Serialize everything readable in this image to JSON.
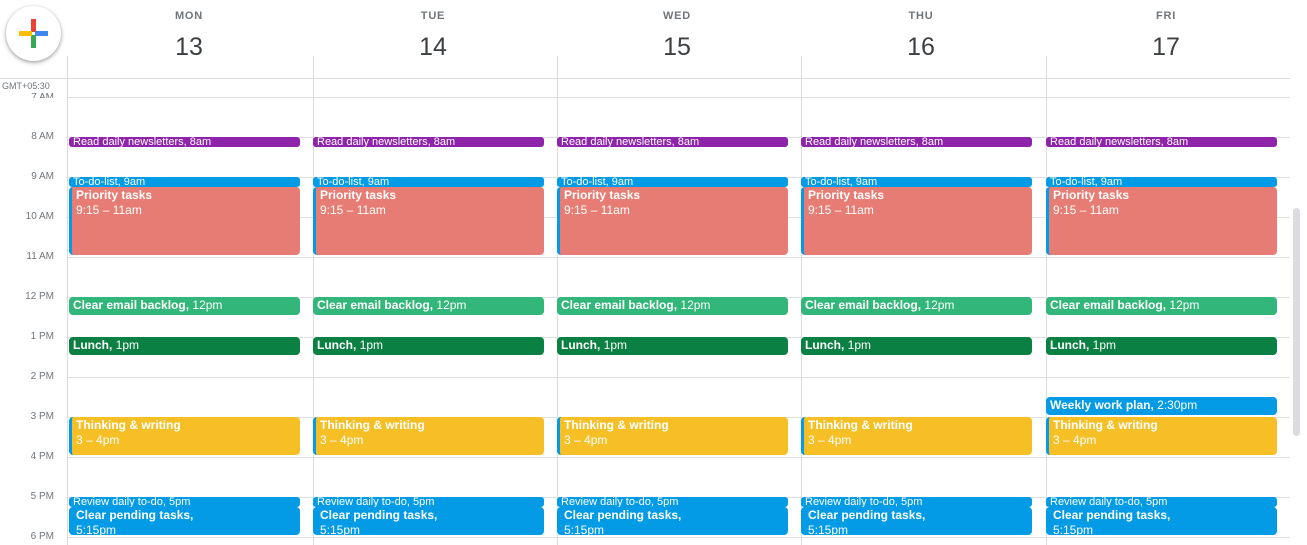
{
  "create_button": {
    "icon": "plus-icon"
  },
  "timezone": "GMT+05:30",
  "days": [
    {
      "name": "MON",
      "number": "13"
    },
    {
      "name": "TUE",
      "number": "14"
    },
    {
      "name": "WED",
      "number": "15"
    },
    {
      "name": "THU",
      "number": "16"
    },
    {
      "name": "FRI",
      "number": "17"
    }
  ],
  "hours": [
    "7 AM",
    "8 AM",
    "9 AM",
    "10 AM",
    "11 AM",
    "12 PM",
    "1 PM",
    "2 PM",
    "3 PM",
    "4 PM",
    "5 PM",
    "6 PM"
  ],
  "events": {
    "newsletters": {
      "title": "Read daily newsletters, 8am",
      "color": "#8e24aa"
    },
    "todo": {
      "title": "To-do-list, 9am",
      "color": "#039be5"
    },
    "priority": {
      "title": "Priority tasks",
      "time": "9:15 – 11am",
      "color": "#e67c73"
    },
    "email": {
      "title": "Clear email backlog,",
      "time": "12pm",
      "color": "#33b679"
    },
    "lunch": {
      "title": "Lunch,",
      "time": "1pm",
      "color": "#0b8043"
    },
    "weekly": {
      "title": "Weekly work plan,",
      "time": "2:30pm",
      "color": "#039be5"
    },
    "thinking": {
      "title": "Thinking & writing",
      "time": "3 – 4pm",
      "color": "#f6bf26"
    },
    "review": {
      "title": "Review daily to-do, 5pm",
      "color": "#039be5"
    },
    "pending": {
      "title": "Clear pending tasks,",
      "time": "5:15pm",
      "color": "#039be5"
    }
  }
}
